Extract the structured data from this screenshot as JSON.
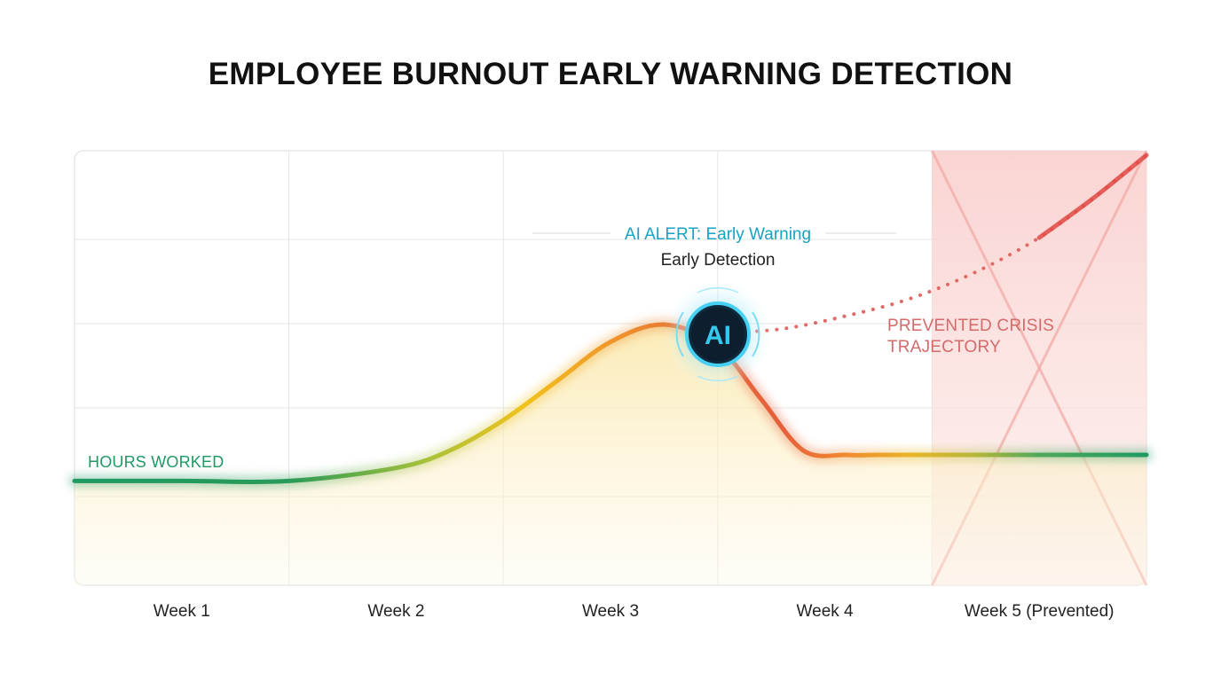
{
  "chart_data": {
    "type": "line",
    "title": "EMPLOYEE BURNOUT EARLY WARNING DETECTION",
    "categories": [
      "Week 1",
      "Week 2",
      "Week 3",
      "Week 4",
      "Week 5 (Prevented)"
    ],
    "x_range": [
      0.5,
      5.5
    ],
    "ylim": [
      0,
      100
    ],
    "grid": true,
    "series": [
      {
        "name": "HOURS WORKED",
        "x": [
          0.5,
          1.0,
          1.5,
          2.0,
          2.25,
          2.5,
          2.75,
          3.0,
          3.25,
          3.5,
          3.7,
          3.9,
          4.1,
          4.25,
          4.5,
          5.0,
          5.5
        ],
        "y": [
          24,
          24,
          24,
          27,
          31,
          38,
          47,
          56,
          60,
          55,
          43,
          31,
          30,
          30,
          30,
          30,
          30
        ],
        "color_start": "#1f9a63",
        "color_peak": "#e0463c"
      },
      {
        "name": "PREVENTED CRISIS TRAJECTORY",
        "x": [
          3.5,
          3.8,
          4.1,
          4.4,
          4.7,
          5.0,
          5.25,
          5.5
        ],
        "y": [
          58,
          59,
          62,
          66,
          72,
          80,
          89,
          99
        ],
        "style": "dotted",
        "color": "#d9534f"
      }
    ],
    "annotations": {
      "alert": "AI ALERT: Early Warning",
      "alert_sub": "Early Detection",
      "marker": "AI",
      "crisis_line1": "PREVENTED CRISIS",
      "crisis_line2": "TRAJECTORY",
      "series_label": "HOURS WORKED"
    },
    "colors": {
      "alert": "#17a3c3",
      "crisis_zone": "#f7c6c4",
      "ai_glow": "#3cc8f0"
    }
  }
}
